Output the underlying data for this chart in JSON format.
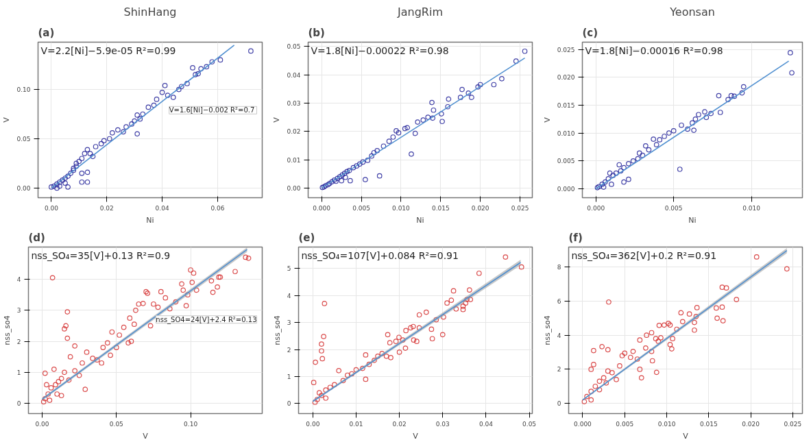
{
  "chart_data": [
    {
      "type": "scatter",
      "title": "ShinHang",
      "subtitle": "(a)",
      "xlabel": "Ni",
      "ylabel": "V",
      "annotations": [
        "V=2.2[Ni]−5.9e-05 R²=0.99",
        "V=1.6[Ni]−0.002  R²=0.7"
      ],
      "xlim": [
        -0.0048,
        0.0761
      ],
      "ylim": [
        -0.0098,
        0.148
      ],
      "xticks": [
        {
          "value": 0,
          "label": "0.00"
        },
        {
          "value": 0.02,
          "label": "0.02"
        },
        {
          "value": 0.04,
          "label": "0.04"
        },
        {
          "value": 0.06,
          "label": "0.06"
        }
      ],
      "yticks": [
        {
          "value": 0,
          "label": "0.00"
        },
        {
          "value": 0.05,
          "label": "0.05"
        },
        {
          "value": 0.1,
          "label": "0.10"
        }
      ],
      "grid": true,
      "marker": "circle",
      "series": [
        {
          "color": "#1f1f96",
          "x": [
            0.072,
            0.061,
            0.058,
            0.056,
            0.054,
            0.051,
            0.052,
            0.053,
            0.049,
            0.047,
            0.046,
            0.041,
            0.04,
            0.042,
            0.044,
            0.038,
            0.037,
            0.035,
            0.033,
            0.031,
            0.032,
            0.03,
            0.029,
            0.027,
            0.024,
            0.026,
            0.031,
            0.022,
            0.021,
            0.019,
            0.018,
            0.016,
            0.014,
            0.013,
            0.012,
            0.015,
            0.011,
            0.01,
            0.009,
            0.008,
            0.011,
            0.013,
            0.011,
            0.013,
            0.007,
            0.006,
            0.005,
            0.004,
            0.003,
            0.002,
            0.001,
            0.0,
            0.003,
            0.006,
            0.005,
            0.002,
            0.008,
            0.009
          ],
          "values": [
            0.139,
            0.13,
            0.128,
            0.123,
            0.121,
            0.122,
            0.115,
            0.116,
            0.106,
            0.103,
            0.1,
            0.104,
            0.097,
            0.094,
            0.092,
            0.09,
            0.084,
            0.082,
            0.075,
            0.074,
            0.07,
            0.068,
            0.065,
            0.062,
            0.059,
            0.057,
            0.055,
            0.056,
            0.05,
            0.048,
            0.045,
            0.042,
            0.035,
            0.039,
            0.035,
            0.032,
            0.03,
            0.027,
            0.025,
            0.02,
            0.015,
            0.016,
            0.006,
            0.006,
            0.015,
            0.012,
            0.01,
            0.008,
            0.006,
            0.004,
            0.002,
            0.001,
            0.002,
            0.001,
            0.005,
            0.0,
            0.018,
            0.022
          ]
        },
        {
          "type": "line",
          "marker": "none",
          "color": "#4f8fd0",
          "x": [
            0,
            0.066
          ],
          "values": [
            0,
            0.145
          ]
        }
      ]
    },
    {
      "type": "scatter",
      "title": "JangRim",
      "subtitle": "(b)",
      "xlabel": "Ni",
      "ylabel": "V",
      "annotations": [
        "V=1.8[Ni]−0.00022 R²=0.98"
      ],
      "xlim": [
        -0.0017,
        0.02655
      ],
      "ylim": [
        -0.0034,
        0.0515
      ],
      "xticks": [
        {
          "value": 0,
          "label": "0.000"
        },
        {
          "value": 0.005,
          "label": "0.005"
        },
        {
          "value": 0.01,
          "label": "0.010"
        },
        {
          "value": 0.015,
          "label": "0.015"
        },
        {
          "value": 0.02,
          "label": "0.020"
        },
        {
          "value": 0.025,
          "label": "0.025"
        }
      ],
      "yticks": [
        {
          "value": 0,
          "label": "0.00"
        },
        {
          "value": 0.01,
          "label": "0.01"
        },
        {
          "value": 0.02,
          "label": "0.02"
        },
        {
          "value": 0.03,
          "label": "0.03"
        },
        {
          "value": 0.04,
          "label": "0.04"
        },
        {
          "value": 0.05,
          "label": "0.05"
        }
      ],
      "grid": true,
      "marker": "circle",
      "series": [
        {
          "color": "#1f1f96",
          "x": [
            0.0256,
            0.0245,
            0.0227,
            0.0217,
            0.02,
            0.0197,
            0.0189,
            0.0185,
            0.0177,
            0.0175,
            0.016,
            0.0159,
            0.0152,
            0.0151,
            0.0141,
            0.0139,
            0.014,
            0.0134,
            0.0128,
            0.0121,
            0.0118,
            0.0113,
            0.0108,
            0.0105,
            0.0097,
            0.0094,
            0.009,
            0.0085,
            0.0078,
            0.0073,
            0.007,
            0.0066,
            0.0063,
            0.0055,
            0.0058,
            0.0052,
            0.0048,
            0.0044,
            0.004,
            0.0036,
            0.0035,
            0.0032,
            0.0029,
            0.0026,
            0.0023,
            0.002,
            0.0018,
            0.0016,
            0.0013,
            0.001,
            0.0008,
            0.0005,
            0.0003,
            0.0001,
            0.0025,
            0.003
          ],
          "values": [
            0.0483,
            0.0448,
            0.0386,
            0.0365,
            0.0365,
            0.0357,
            0.032,
            0.0335,
            0.0348,
            0.032,
            0.0314,
            0.0287,
            0.0235,
            0.0262,
            0.0275,
            0.0302,
            0.0247,
            0.025,
            0.024,
            0.0233,
            0.0193,
            0.012,
            0.0213,
            0.021,
            0.0195,
            0.0202,
            0.018,
            0.0165,
            0.0148,
            0.0043,
            0.0132,
            0.0125,
            0.0113,
            0.003,
            0.0098,
            0.0092,
            0.0085,
            0.0078,
            0.0072,
            0.0026,
            0.0062,
            0.0058,
            0.0052,
            0.0046,
            0.004,
            0.0034,
            0.0024,
            0.0028,
            0.0022,
            0.0016,
            0.0012,
            0.0008,
            0.0004,
            0.0002,
            0.0026,
            0.0038
          ]
        },
        {
          "type": "line",
          "marker": "none",
          "color": "#4f8fd0",
          "x": [
            0,
            0.0256
          ],
          "values": [
            0,
            0.0459
          ]
        }
      ]
    },
    {
      "type": "scatter",
      "title": "Yeonsan",
      "subtitle": "(c)",
      "xlabel": "Ni",
      "ylabel": "V",
      "annotations": [
        "V=1.8[Ni]−0.00016 R²=0.98"
      ],
      "xlim": [
        -0.00087,
        0.01328
      ],
      "ylim": [
        -0.0016,
        0.0263
      ],
      "xticks": [
        {
          "value": 0,
          "label": "0.000"
        },
        {
          "value": 0.005,
          "label": "0.005"
        },
        {
          "value": 0.01,
          "label": "0.010"
        }
      ],
      "yticks": [
        {
          "value": 0,
          "label": "0.000"
        },
        {
          "value": 0.005,
          "label": "0.005"
        },
        {
          "value": 0.01,
          "label": "0.010"
        },
        {
          "value": 0.015,
          "label": "0.015"
        },
        {
          "value": 0.02,
          "label": "0.020"
        },
        {
          "value": 0.025,
          "label": "0.025"
        }
      ],
      "grid": true,
      "marker": "circle",
      "series": [
        {
          "color": "#1f1f96",
          "x": [
            0.0125,
            0.0126,
            0.0095,
            0.0094,
            0.0089,
            0.0087,
            0.0085,
            0.0079,
            0.008,
            0.0074,
            0.007,
            0.0071,
            0.0066,
            0.0064,
            0.0062,
            0.0063,
            0.0059,
            0.0054,
            0.0055,
            0.005,
            0.0047,
            0.0044,
            0.0041,
            0.0039,
            0.0037,
            0.0034,
            0.0032,
            0.003,
            0.0028,
            0.0027,
            0.0024,
            0.0021,
            0.0021,
            0.0018,
            0.0018,
            0.0015,
            0.0016,
            0.0013,
            0.0011,
            0.0009,
            0.0008,
            0.0006,
            0.0004,
            0.0002,
            0.0001,
            0.001,
            0.0005
          ],
          "values": [
            0.0244,
            0.0208,
            0.0183,
            0.0172,
            0.0166,
            0.0167,
            0.016,
            0.0167,
            0.0137,
            0.0135,
            0.0138,
            0.0128,
            0.0133,
            0.0125,
            0.0118,
            0.0105,
            0.0107,
            0.0035,
            0.0114,
            0.0104,
            0.01,
            0.0094,
            0.0088,
            0.0079,
            0.0089,
            0.007,
            0.0077,
            0.006,
            0.0064,
            0.0054,
            0.005,
            0.0045,
            0.0017,
            0.0012,
            0.0038,
            0.0043,
            0.0032,
            0.0028,
            0.0024,
            0.0028,
            0.0018,
            0.0012,
            0.0008,
            0.0004,
            0.0002,
            0.0008,
            0.0003
          ]
        },
        {
          "type": "line",
          "marker": "none",
          "color": "#4f8fd0",
          "x": [
            0,
            0.0124
          ],
          "values": [
            0,
            0.0229
          ]
        }
      ]
    },
    {
      "type": "scatter",
      "subtitle": "(d)",
      "xlabel": "V",
      "ylabel": "nss_so4",
      "annotations": [
        "nss_SO₄=35[V]+0.13 R²=0.9",
        "nss_SO4=24[V]+2.4 R²=0.13"
      ],
      "xlim": [
        -0.00925,
        0.1482
      ],
      "ylim": [
        -0.33,
        5.04
      ],
      "xticks": [
        {
          "value": 0,
          "label": "0.00"
        },
        {
          "value": 0.05,
          "label": "0.05"
        },
        {
          "value": 0.1,
          "label": "0.10"
        }
      ],
      "yticks": [
        0,
        1,
        2,
        3,
        4
      ],
      "grid": true,
      "marker": "circle",
      "series": [
        {
          "color": "#d42a2a",
          "x": [
            0.139,
            0.137,
            0.13,
            0.12,
            0.119,
            0.118,
            0.115,
            0.114,
            0.104,
            0.102,
            0.101,
            0.1,
            0.098,
            0.097,
            0.095,
            0.094,
            0.09,
            0.086,
            0.083,
            0.08,
            0.078,
            0.075,
            0.071,
            0.07,
            0.073,
            0.068,
            0.065,
            0.063,
            0.062,
            0.06,
            0.059,
            0.058,
            0.055,
            0.052,
            0.05,
            0.047,
            0.046,
            0.044,
            0.041,
            0.04,
            0.037,
            0.034,
            0.03,
            0.029,
            0.027,
            0.025,
            0.022,
            0.019,
            0.022,
            0.017,
            0.016,
            0.015,
            0.017,
            0.007,
            0.018,
            0.015,
            0.013,
            0.011,
            0.009,
            0.008,
            0.006,
            0.004,
            0.002,
            0.002,
            0.001,
            0.005,
            0.01,
            0.013,
            0.003
          ],
          "values": [
            4.68,
            4.71,
            4.25,
            4.07,
            4.07,
            3.75,
            3.58,
            3.95,
            3.65,
            4.2,
            3.9,
            4.3,
            3.5,
            3.15,
            3.65,
            3.85,
            3.27,
            3.05,
            3.4,
            3.6,
            3.1,
            3.2,
            3.55,
            3.6,
            2.5,
            3.22,
            3.2,
            3.0,
            2.55,
            2.0,
            2.75,
            1.95,
            2.45,
            2.2,
            1.8,
            2.3,
            1.55,
            1.95,
            1.8,
            1.3,
            1.4,
            1.45,
            1.65,
            0.45,
            1.3,
            0.9,
            1.05,
            1.5,
            1.85,
            2.95,
            2.5,
            2.4,
            2.1,
            4.05,
            0.75,
            1.0,
            0.8,
            0.7,
            0.6,
            1.1,
            0.5,
            0.3,
            0.97,
            0.15,
            0.05,
            0.1,
            0.3,
            0.25,
            0.6
          ]
        },
        {
          "type": "line",
          "marker": "none",
          "color": "#4f8fd0",
          "x": [
            0,
            0.138
          ],
          "values": [
            0.13,
            4.96
          ],
          "lower": [
            0.09,
            4.88
          ],
          "upper": [
            0.17,
            5.03
          ]
        }
      ]
    },
    {
      "type": "scatter",
      "subtitle": "(e)",
      "xlabel": "V",
      "ylabel": "nss_so4",
      "annotations": [
        "nss_SO₄=107[V]+0.084 R²=0.91"
      ],
      "xlim": [
        -0.0033,
        0.0507
      ],
      "ylim": [
        -0.37,
        5.79
      ],
      "xticks": [
        {
          "value": 0,
          "label": "0.00"
        },
        {
          "value": 0.01,
          "label": "0.01"
        },
        {
          "value": 0.02,
          "label": "0.02"
        },
        {
          "value": 0.03,
          "label": "0.03"
        },
        {
          "value": 0.04,
          "label": "0.04"
        },
        {
          "value": 0.05,
          "label": "0.05"
        }
      ],
      "yticks": [
        0,
        1,
        2,
        3,
        4,
        5
      ],
      "grid": true,
      "marker": "circle",
      "series": [
        {
          "color": "#d42a2a",
          "x": [
            0.0445,
            0.0482,
            0.0384,
            0.0362,
            0.0364,
            0.0356,
            0.0347,
            0.0347,
            0.0353,
            0.0325,
            0.032,
            0.031,
            0.0331,
            0.0302,
            0.03,
            0.0285,
            0.0276,
            0.0274,
            0.0262,
            0.0246,
            0.0246,
            0.024,
            0.0232,
            0.0233,
            0.0226,
            0.0215,
            0.0214,
            0.0208,
            0.0199,
            0.02,
            0.0192,
            0.0178,
            0.0173,
            0.018,
            0.017,
            0.016,
            0.015,
            0.0142,
            0.013,
            0.0122,
            0.0122,
            0.0115,
            0.01,
            0.009,
            0.008,
            0.007,
            0.006,
            0.005,
            0.004,
            0.003,
            0.0027,
            0.0025,
            0.002,
            0.002,
            0.0022,
            0.0006,
            0.0002,
            0.002,
            0.001,
            0.0005,
            0.0015,
            0.003
          ],
          "values": [
            5.42,
            5.05,
            4.82,
            4.2,
            3.85,
            3.85,
            3.6,
            3.48,
            3.72,
            4.17,
            3.82,
            3.72,
            3.5,
            3.2,
            2.55,
            3.1,
            2.4,
            2.75,
            3.38,
            3.28,
            2.8,
            2.3,
            2.85,
            2.35,
            2.8,
            2.7,
            2.05,
            2.35,
            2.45,
            1.9,
            2.3,
            2.25,
            2.55,
            1.7,
            1.75,
            1.85,
            1.75,
            1.6,
            1.45,
            1.8,
            0.9,
            1.3,
            1.25,
            1.1,
            1.05,
            0.85,
            1.22,
            0.7,
            0.6,
            0.5,
            3.7,
            2.48,
            2.2,
            1.95,
            1.66,
            1.53,
            0.78,
            0.3,
            0.15,
            0.05,
            0.4,
            0.2
          ]
        },
        {
          "type": "line",
          "marker": "none",
          "color": "#4f8fd0",
          "x": [
            0,
            0.048
          ],
          "values": [
            0.08,
            5.22
          ],
          "lower": [
            0.05,
            5.12
          ],
          "upper": [
            0.12,
            5.32
          ]
        }
      ]
    },
    {
      "type": "scatter",
      "subtitle": "(f)",
      "xlabel": "V",
      "ylabel": "nss_so4",
      "annotations": [
        "nss_SO₄=362[V]+0.2 R²=0.91"
      ],
      "xlim": [
        -0.00167,
        0.02615
      ],
      "ylim": [
        -0.6,
        9.18
      ],
      "xticks": [
        {
          "value": 0,
          "label": "0.000"
        },
        {
          "value": 0.005,
          "label": "0.005"
        },
        {
          "value": 0.01,
          "label": "0.010"
        },
        {
          "value": 0.015,
          "label": "0.015"
        },
        {
          "value": 0.02,
          "label": "0.020"
        },
        {
          "value": 0.025,
          "label": "0.025"
        }
      ],
      "yticks": [
        0,
        2,
        4,
        6,
        8
      ],
      "grid": true,
      "marker": "circle",
      "series": [
        {
          "color": "#d42a2a",
          "x": [
            0.0207,
            0.0243,
            0.0166,
            0.0171,
            0.0183,
            0.0159,
            0.0166,
            0.016,
            0.0167,
            0.0136,
            0.0135,
            0.0133,
            0.0133,
            0.0127,
            0.0117,
            0.0119,
            0.0112,
            0.0104,
            0.0102,
            0.0107,
            0.0104,
            0.0106,
            0.0097,
            0.0091,
            0.0093,
            0.009,
            0.0087,
            0.0082,
            0.0076,
            0.0082,
            0.0088,
            0.0083,
            0.0075,
            0.0068,
            0.007,
            0.0068,
            0.0065,
            0.006,
            0.0057,
            0.005,
            0.0047,
            0.0044,
            0.004,
            0.0031,
            0.0023,
            0.003,
            0.0013,
            0.0013,
            0.001,
            0.0035,
            0.003,
            0.0025,
            0.002,
            0.0015,
            0.001,
            0.0005,
            0.0002,
            0.001,
            0.002,
            0.0028
          ],
          "values": [
            8.6,
            7.9,
            6.82,
            6.78,
            6.1,
            5.6,
            5.65,
            5.0,
            4.85,
            5.62,
            5.1,
            4.75,
            4.3,
            5.25,
            5.32,
            4.8,
            4.35,
            4.6,
            4.7,
            3.8,
            3.45,
            3.2,
            4.6,
            4.58,
            3.85,
            3.65,
            3.8,
            4.15,
            4.0,
            3.05,
            1.82,
            2.5,
            3.25,
            3.72,
            1.5,
            2.0,
            2.6,
            3.05,
            2.7,
            2.95,
            2.8,
            2.2,
            1.4,
            5.95,
            3.33,
            3.15,
            3.1,
            2.28,
            2.0,
            1.8,
            1.9,
            1.5,
            1.3,
            1.0,
            0.7,
            0.4,
            0.1,
            0.2,
            0.8,
            1.2
          ]
        },
        {
          "type": "line",
          "marker": "none",
          "color": "#4f8fd0",
          "x": [
            0,
            0.0243
          ],
          "values": [
            0.2,
            8.97
          ],
          "lower": [
            0.15,
            8.82
          ],
          "upper": [
            0.25,
            9.12
          ]
        }
      ]
    }
  ]
}
